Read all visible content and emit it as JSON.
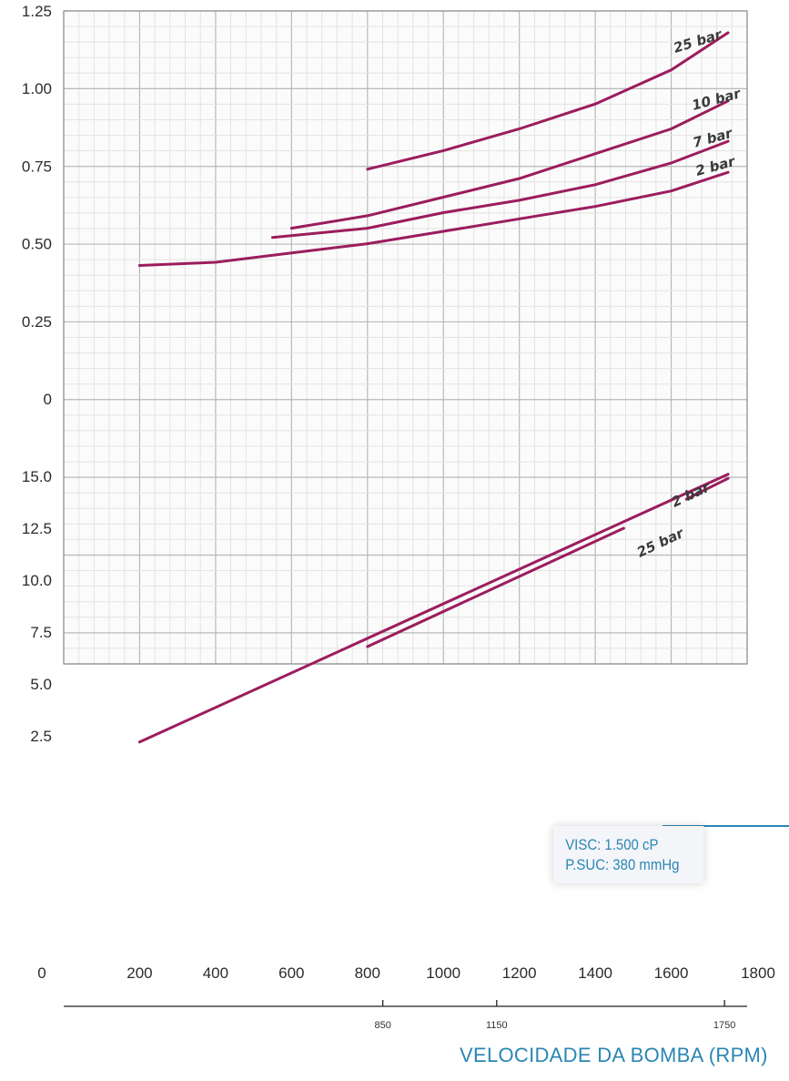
{
  "colors": {
    "curve": "#9b1d5d",
    "grid_major": "#b9b9b9",
    "grid_minor": "#e3e3e3",
    "accent": "#2a86b4"
  },
  "chart_data": [
    {
      "type": "line",
      "panel": "upper",
      "ylim": [
        0,
        1.25
      ],
      "yticks": [
        "1.25",
        "1.00",
        "0.75",
        "0.50",
        "0.25",
        "0"
      ],
      "xlim": [
        0,
        1800
      ],
      "series": [
        {
          "name": "25 bar",
          "x": [
            800,
            1000,
            1200,
            1400,
            1600,
            1750
          ],
          "y": [
            0.74,
            0.8,
            0.87,
            0.95,
            1.06,
            1.18
          ]
        },
        {
          "name": "10 bar",
          "x": [
            600,
            800,
            1000,
            1200,
            1400,
            1600,
            1750
          ],
          "y": [
            0.55,
            0.59,
            0.65,
            0.71,
            0.79,
            0.87,
            0.96
          ]
        },
        {
          "name": "7 bar",
          "x": [
            550,
            800,
            1000,
            1200,
            1400,
            1600,
            1750
          ],
          "y": [
            0.52,
            0.55,
            0.6,
            0.64,
            0.69,
            0.76,
            0.83
          ]
        },
        {
          "name": "2 bar",
          "x": [
            200,
            400,
            600,
            800,
            1000,
            1200,
            1400,
            1600,
            1750
          ],
          "y": [
            0.43,
            0.44,
            0.47,
            0.5,
            0.54,
            0.58,
            0.62,
            0.67,
            0.73
          ]
        }
      ]
    },
    {
      "type": "line",
      "panel": "lower",
      "ylim": [
        0,
        17.5
      ],
      "yticks": [
        "15.0",
        "12.5",
        "10.0",
        "7.5",
        "5.0",
        "2.5"
      ],
      "xlim": [
        0,
        1800
      ],
      "series": [
        {
          "name": "2 bar",
          "x": [
            200,
            1750
          ],
          "y": [
            2.2,
            15.1
          ]
        },
        {
          "name": "25 bar",
          "x": [
            800,
            1475
          ],
          "y": [
            6.8,
            12.5
          ]
        },
        {
          "name": "25 bar",
          "x": [
            1640,
            1750
          ],
          "y": [
            13.9,
            14.9
          ]
        }
      ]
    }
  ],
  "x_axis": {
    "ticks": [
      "0",
      "200",
      "400",
      "600",
      "800",
      "1000",
      "1200",
      "1400",
      "1600",
      "1800"
    ],
    "tick_values": [
      0,
      200,
      400,
      600,
      800,
      1000,
      1200,
      1400,
      1600,
      1800
    ],
    "title": "VELOCIDADE DA BOMBA (RPM)"
  },
  "pump_axis": {
    "labels": [
      "850",
      "1150",
      "1750"
    ],
    "positions_rpm": [
      850,
      1150,
      1750
    ]
  },
  "info": {
    "line1": "VISC: 1.500 cP",
    "line2": "P.SUC: 380 mmHg"
  }
}
